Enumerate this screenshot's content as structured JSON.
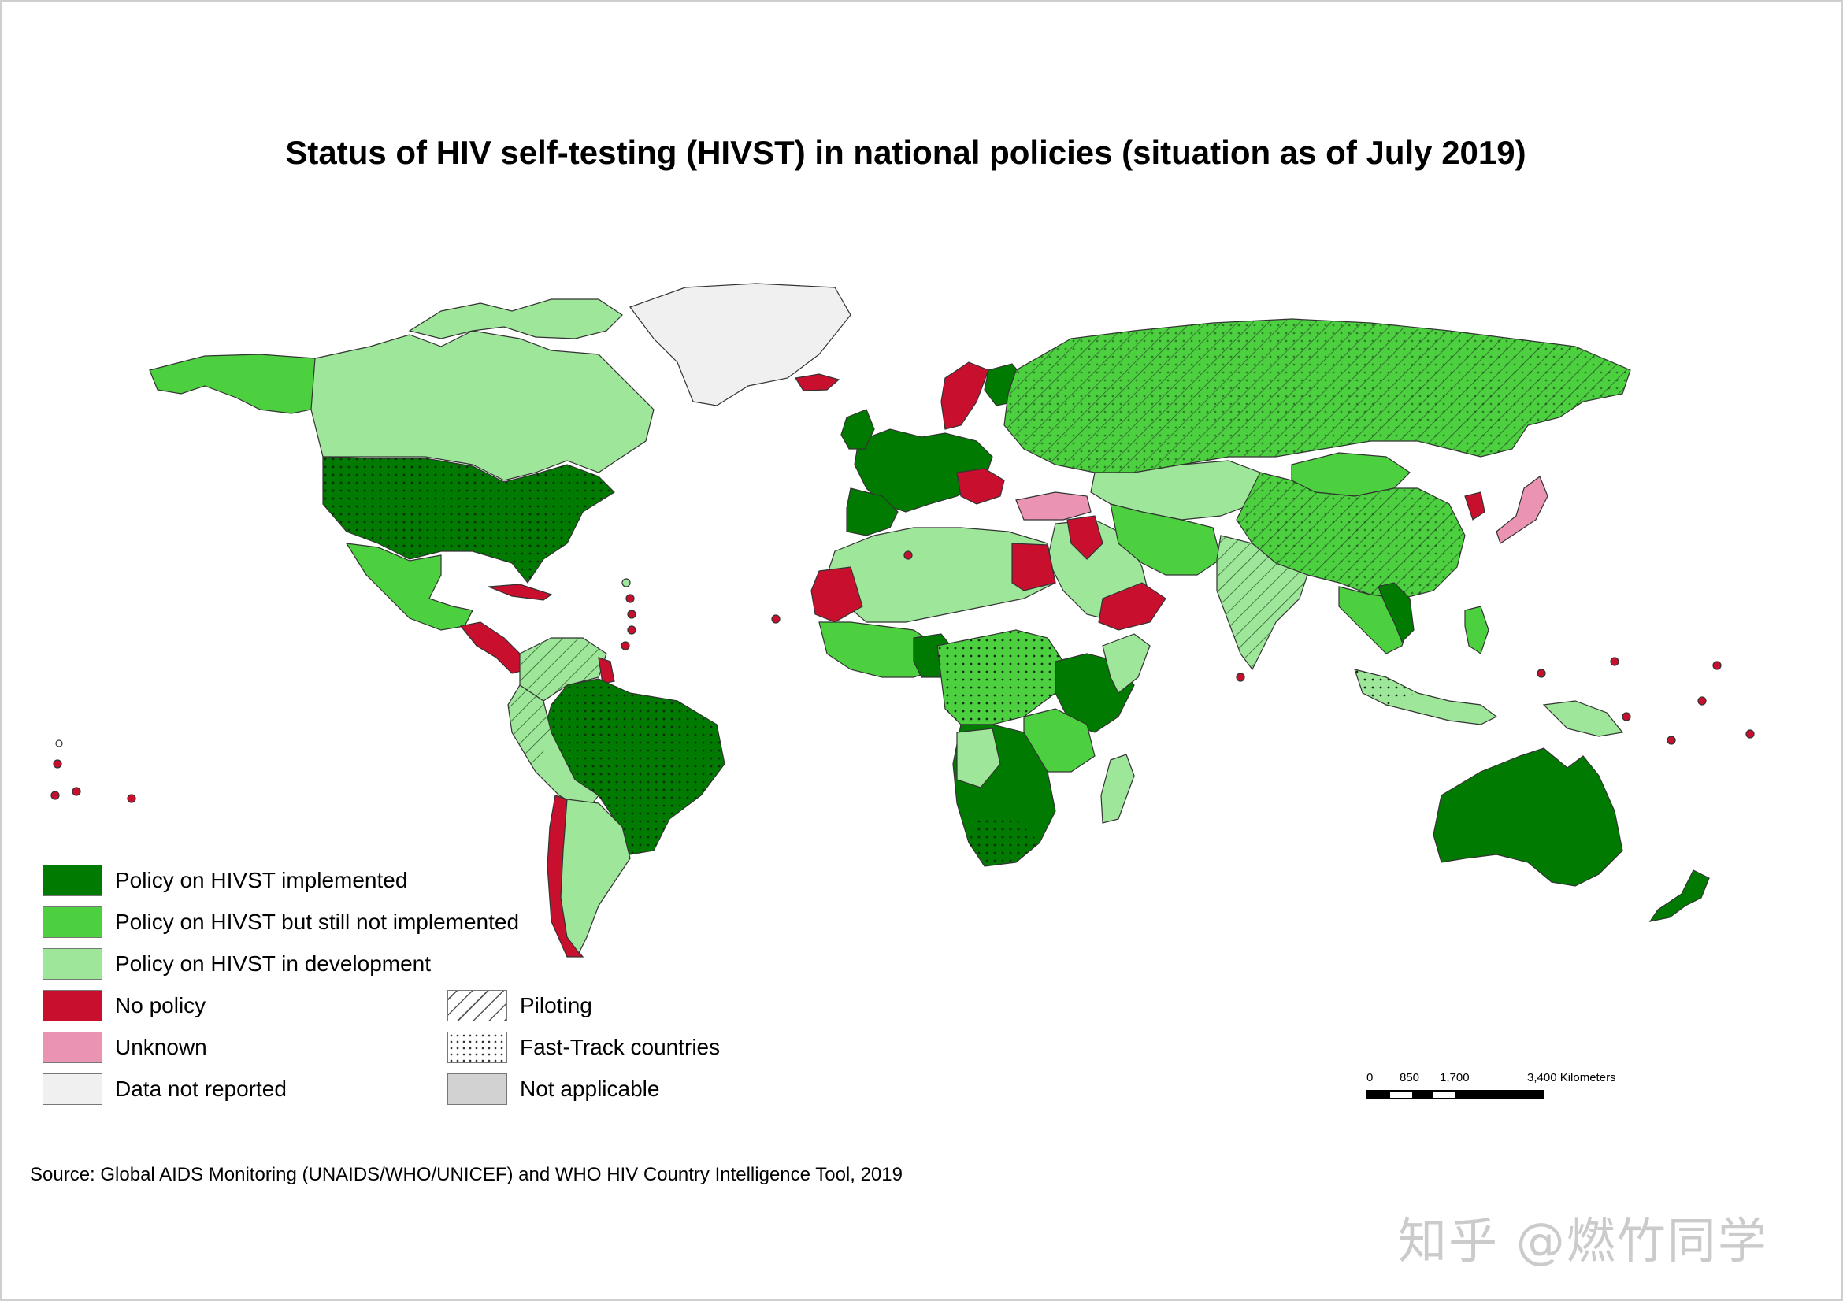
{
  "title": "Status of HIV self-testing (HIVST) in national policies (situation as of July 2019)",
  "legend": {
    "categories": [
      {
        "label": "Policy on HIVST implemented",
        "color": "#007a00"
      },
      {
        "label": "Policy on HIVST but still not implemented",
        "color": "#4cd040"
      },
      {
        "label": "Policy on HIVST in development",
        "color": "#9ee69a"
      },
      {
        "label": "No policy",
        "color": "#c8102e"
      },
      {
        "label": "Unknown",
        "color": "#ea93b2"
      },
      {
        "label": "Data not reported",
        "color": "#f0f0f0"
      }
    ],
    "patterns": [
      {
        "label": "Piloting",
        "pattern": "hatch"
      },
      {
        "label": "Fast-Track countries",
        "pattern": "dots"
      },
      {
        "label": "Not applicable",
        "color": "#d2d2d2"
      }
    ]
  },
  "scale": {
    "ticks": [
      "0",
      "850",
      "1,700",
      "3,400 Kilometers"
    ]
  },
  "source": "Source: Global AIDS Monitoring (UNAIDS/WHO/UNICEF) and WHO HIV Country Intelligence Tool, 2019",
  "watermark": "知乎 @燃竹同学"
}
